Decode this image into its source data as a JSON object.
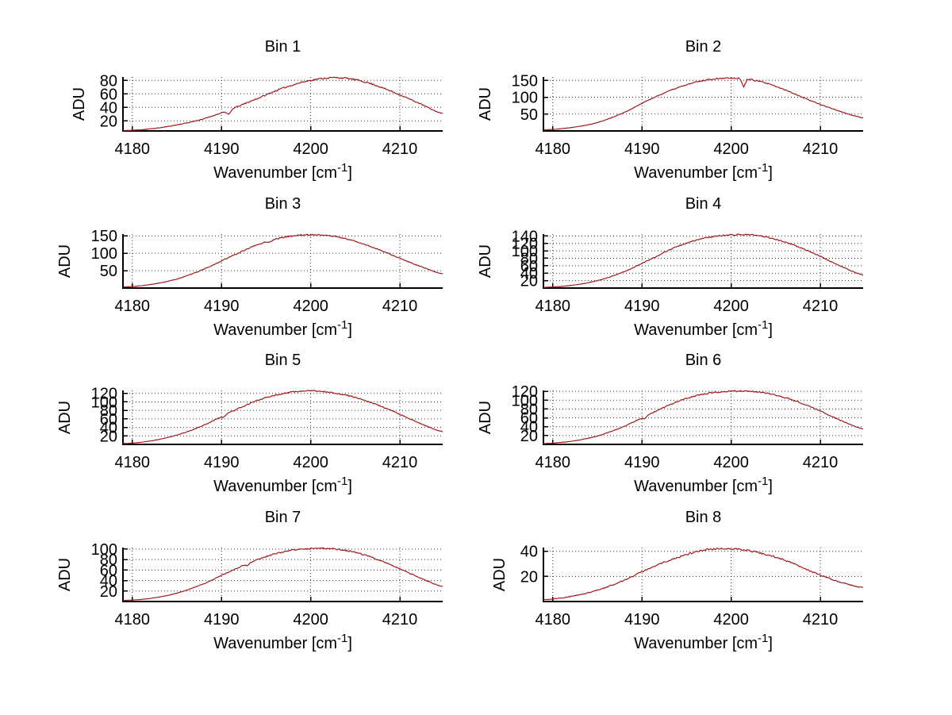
{
  "page": {
    "background": "#ffffff",
    "text_color": "#000000"
  },
  "chart_data": {
    "type": "line",
    "layout": "4x2 subplot grid",
    "xlabel_main": "Wavenumber [cm",
    "xlabel_sup": "-1",
    "xlabel_end": "]",
    "ylabel": "ADU",
    "x_ticks": [
      4180,
      4190,
      4200,
      4210
    ],
    "xlim": [
      4178.95,
      4214.8
    ],
    "grid": true,
    "grid_color": "#333333",
    "axis_color": "#000000",
    "line_color": "#a0181c",
    "plots": [
      {
        "title": "Bin 1",
        "yticks": [
          20,
          40,
          60,
          80
        ],
        "ylim": [
          5,
          85
        ],
        "peak_x": 4202.5,
        "peak_adu": 84,
        "seed": 11,
        "points": [
          [
            4179,
            5.5
          ],
          [
            4182,
            8
          ],
          [
            4185,
            14
          ],
          [
            4188,
            23
          ],
          [
            4191,
            37
          ],
          [
            4194,
            53
          ],
          [
            4197,
            69
          ],
          [
            4200,
            80
          ],
          [
            4203,
            84
          ],
          [
            4206,
            78
          ],
          [
            4209,
            64
          ],
          [
            4212,
            47
          ],
          [
            4215,
            30
          ]
        ],
        "notches": [
          {
            "x": 4190.8,
            "depth": 7,
            "width": 0.5
          }
        ]
      },
      {
        "title": "Bin 2",
        "yticks": [
          50,
          100,
          150
        ],
        "ylim": [
          0,
          160
        ],
        "peak_x": 4199.8,
        "peak_adu": 157,
        "seed": 22,
        "points": [
          [
            4179,
            3
          ],
          [
            4182,
            10
          ],
          [
            4185,
            25
          ],
          [
            4188,
            55
          ],
          [
            4191,
            95
          ],
          [
            4194,
            128
          ],
          [
            4197,
            150
          ],
          [
            4200,
            157
          ],
          [
            4203,
            148
          ],
          [
            4206,
            122
          ],
          [
            4209,
            89
          ],
          [
            4212,
            60
          ],
          [
            4215,
            38
          ]
        ],
        "notches": [
          {
            "x": 4201.4,
            "depth": 26,
            "width": 0.4
          }
        ]
      },
      {
        "title": "Bin 3",
        "yticks": [
          50,
          100,
          150
        ],
        "ylim": [
          0,
          155
        ],
        "peak_x": 4200,
        "peak_adu": 153,
        "seed": 33,
        "points": [
          [
            4179,
            3
          ],
          [
            4182,
            10
          ],
          [
            4185,
            26
          ],
          [
            4188,
            54
          ],
          [
            4191,
            90
          ],
          [
            4194,
            124
          ],
          [
            4197,
            146
          ],
          [
            4200,
            153
          ],
          [
            4203,
            147
          ],
          [
            4206,
            126
          ],
          [
            4209,
            96
          ],
          [
            4212,
            65
          ],
          [
            4215,
            40
          ]
        ],
        "notches": [
          {
            "x": 4195.4,
            "depth": 5,
            "width": 0.35
          }
        ]
      },
      {
        "title": "Bin 4",
        "yticks": [
          20,
          40,
          60,
          80,
          100,
          120,
          140
        ],
        "ylim": [
          0,
          145
        ],
        "peak_x": 4200.5,
        "peak_adu": 143,
        "seed": 44,
        "points": [
          [
            4179,
            2
          ],
          [
            4182,
            7
          ],
          [
            4185,
            20
          ],
          [
            4188,
            44
          ],
          [
            4191,
            78
          ],
          [
            4194,
            112
          ],
          [
            4197,
            134
          ],
          [
            4200,
            143
          ],
          [
            4203,
            141
          ],
          [
            4206,
            124
          ],
          [
            4209,
            96
          ],
          [
            4212,
            62
          ],
          [
            4215,
            34
          ]
        ],
        "notches": []
      },
      {
        "title": "Bin 5",
        "yticks": [
          20,
          40,
          60,
          80,
          100,
          120
        ],
        "ylim": [
          0,
          127
        ],
        "peak_x": 4199.5,
        "peak_adu": 126,
        "seed": 55,
        "points": [
          [
            4179,
            2
          ],
          [
            4182,
            8
          ],
          [
            4185,
            22
          ],
          [
            4188,
            45
          ],
          [
            4191,
            76
          ],
          [
            4194,
            103
          ],
          [
            4197,
            120
          ],
          [
            4200,
            126
          ],
          [
            4203,
            120
          ],
          [
            4206,
            104
          ],
          [
            4209,
            80
          ],
          [
            4212,
            52
          ],
          [
            4215,
            29
          ]
        ],
        "notches": [
          {
            "x": 4190.2,
            "depth": 5,
            "width": 0.4
          }
        ]
      },
      {
        "title": "Bin 6",
        "yticks": [
          20,
          40,
          60,
          80,
          100,
          120
        ],
        "ylim": [
          0,
          122
        ],
        "peak_x": 4200.5,
        "peak_adu": 120,
        "seed": 66,
        "points": [
          [
            4179,
            2
          ],
          [
            4182,
            7
          ],
          [
            4185,
            19
          ],
          [
            4188,
            41
          ],
          [
            4191,
            70
          ],
          [
            4194,
            97
          ],
          [
            4197,
            114
          ],
          [
            4200,
            120
          ],
          [
            4203,
            119
          ],
          [
            4206,
            106
          ],
          [
            4209,
            84
          ],
          [
            4212,
            57
          ],
          [
            4215,
            34
          ]
        ],
        "notches": [
          {
            "x": 4190.3,
            "depth": 5,
            "width": 0.4
          }
        ]
      },
      {
        "title": "Bin 7",
        "yticks": [
          20,
          40,
          60,
          80,
          100
        ],
        "ylim": [
          0,
          103
        ],
        "peak_x": 4200.5,
        "peak_adu": 101,
        "seed": 77,
        "points": [
          [
            4179,
            2
          ],
          [
            4182,
            6
          ],
          [
            4185,
            16
          ],
          [
            4188,
            34
          ],
          [
            4191,
            58
          ],
          [
            4194,
            80
          ],
          [
            4197,
            95
          ],
          [
            4200,
            101
          ],
          [
            4203,
            100
          ],
          [
            4206,
            89
          ],
          [
            4209,
            70
          ],
          [
            4212,
            47
          ],
          [
            4215,
            28
          ]
        ],
        "notches": [
          {
            "x": 4192.9,
            "depth": 5,
            "width": 0.4
          }
        ]
      },
      {
        "title": "Bin 8",
        "yticks": [
          20,
          40
        ],
        "ylim": [
          0,
          43
        ],
        "peak_x": 4198.5,
        "peak_adu": 42,
        "seed": 88,
        "points": [
          [
            4179,
            1.5
          ],
          [
            4182,
            4
          ],
          [
            4185,
            9
          ],
          [
            4188,
            17
          ],
          [
            4191,
            27
          ],
          [
            4194,
            35
          ],
          [
            4197,
            41
          ],
          [
            4200,
            42
          ],
          [
            4203,
            39
          ],
          [
            4206,
            33
          ],
          [
            4209,
            24
          ],
          [
            4212,
            16
          ],
          [
            4215,
            11
          ]
        ],
        "notches": []
      }
    ]
  }
}
